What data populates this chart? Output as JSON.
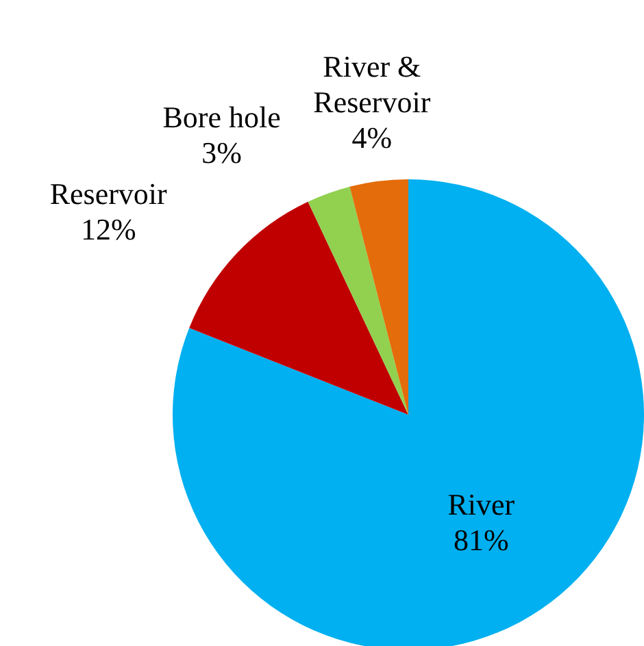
{
  "chart_data": {
    "type": "pie",
    "categories": [
      "River",
      "Reservoir",
      "Bore hole",
      "River & Reservoir"
    ],
    "values": [
      81,
      12,
      3,
      4
    ],
    "colors": [
      "#00b0f0",
      "#c00000",
      "#92d050",
      "#e46c0a"
    ],
    "value_labels": [
      "81%",
      "12%",
      "3%",
      "4%"
    ],
    "legend": false
  }
}
